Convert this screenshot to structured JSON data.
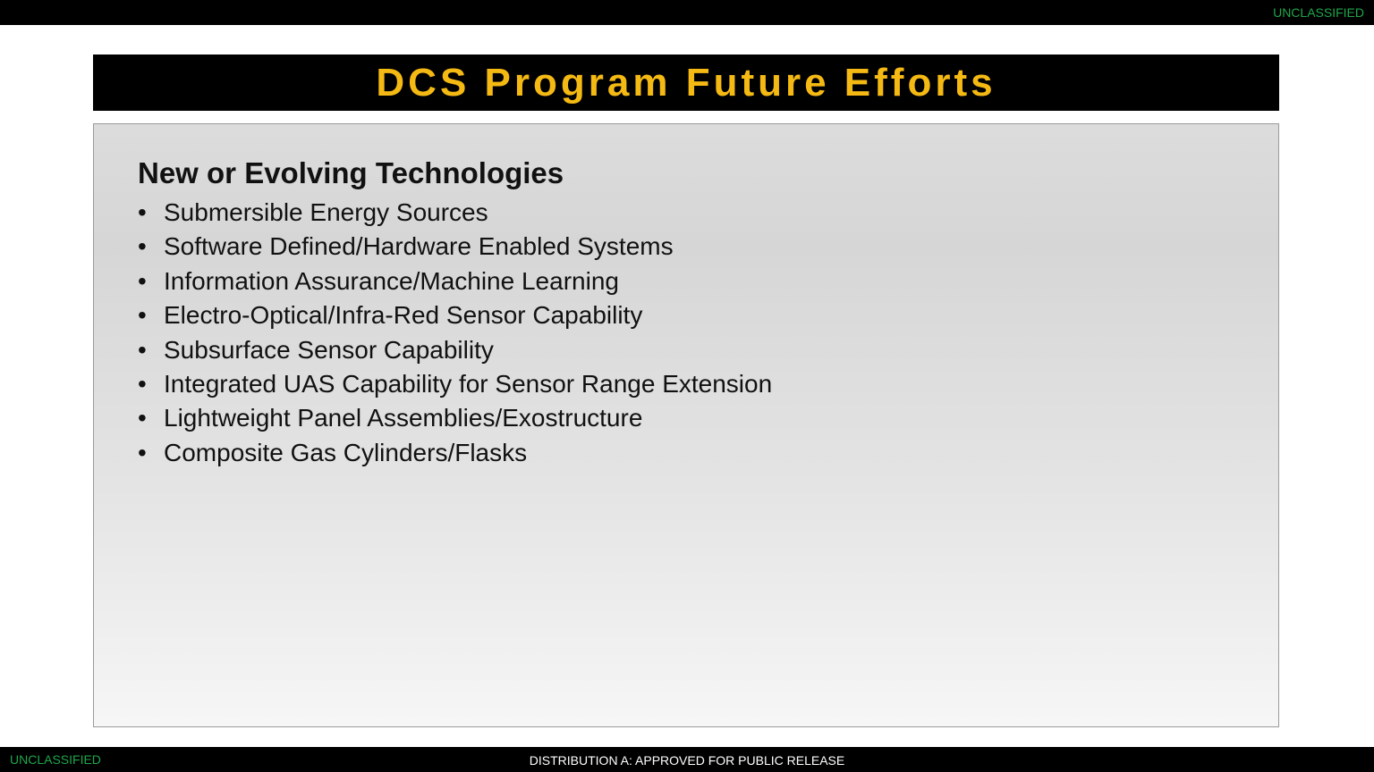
{
  "banner": {
    "classification": "UNCLASSIFIED",
    "classification_color": "#1fa64a"
  },
  "title": "DCS Program Future Efforts",
  "title_color": "#f5b914",
  "content": {
    "heading": "New or Evolving Technologies",
    "items": [
      "Submersible Energy Sources",
      "Software Defined/Hardware Enabled Systems",
      "Information Assurance/Machine Learning",
      "Electro-Optical/Infra-Red Sensor Capability",
      "Subsurface Sensor Capability",
      "Integrated UAS Capability for Sensor Range Extension",
      "Lightweight Panel Assemblies/Exostructure",
      "Composite Gas Cylinders/Flasks"
    ]
  },
  "footer": {
    "classification": "UNCLASSIFIED",
    "distribution": "DISTRIBUTION A: APPROVED FOR PUBLIC RELEASE"
  }
}
